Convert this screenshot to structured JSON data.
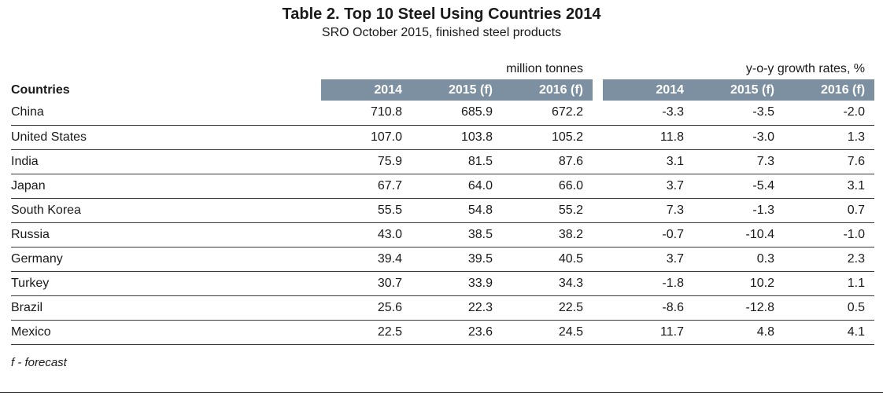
{
  "title": "Table 2. Top 10 Steel Using Countries 2014",
  "subtitle": "SRO October 2015, finished steel products",
  "footnote": "f - forecast",
  "colors": {
    "header_bg": "#7c90a2",
    "header_text": "#ffffff",
    "row_line": "#3a3a3a"
  },
  "table": {
    "countries_header": "Countries",
    "group1_label": "million tonnes",
    "group2_label": "y-o-y growth rates, %",
    "year_headers": [
      "2014",
      "2015 (f)",
      "2016 (f)"
    ]
  },
  "chart_data": {
    "type": "table",
    "title": "Table 2. Top 10 Steel Using Countries 2014",
    "subtitle": "SRO October 2015, finished steel products",
    "column_groups": [
      "million tonnes",
      "y-o-y growth rates, %"
    ],
    "columns": [
      "Countries",
      "2014",
      "2015 (f)",
      "2016 (f)",
      "2014",
      "2015 (f)",
      "2016 (f)"
    ],
    "rows": [
      [
        "China",
        "710.8",
        "685.9",
        "672.2",
        "-3.3",
        "-3.5",
        "-2.0"
      ],
      [
        "United States",
        "107.0",
        "103.8",
        "105.2",
        "11.8",
        "-3.0",
        "1.3"
      ],
      [
        "India",
        "75.9",
        "81.5",
        "87.6",
        "3.1",
        "7.3",
        "7.6"
      ],
      [
        "Japan",
        "67.7",
        "64.0",
        "66.0",
        "3.7",
        "-5.4",
        "3.1"
      ],
      [
        "South Korea",
        "55.5",
        "54.8",
        "55.2",
        "7.3",
        "-1.3",
        "0.7"
      ],
      [
        "Russia",
        "43.0",
        "38.5",
        "38.2",
        "-0.7",
        "-10.4",
        "-1.0"
      ],
      [
        "Germany",
        "39.4",
        "39.5",
        "40.5",
        "3.7",
        "0.3",
        "2.3"
      ],
      [
        "Turkey",
        "30.7",
        "33.9",
        "34.3",
        "-1.8",
        "10.2",
        "1.1"
      ],
      [
        "Brazil",
        "25.6",
        "22.3",
        "22.5",
        "-8.6",
        "-12.8",
        "0.5"
      ],
      [
        "Mexico",
        "22.5",
        "23.6",
        "24.5",
        "11.7",
        "4.8",
        "4.1"
      ]
    ],
    "footnote": "f - forecast"
  }
}
